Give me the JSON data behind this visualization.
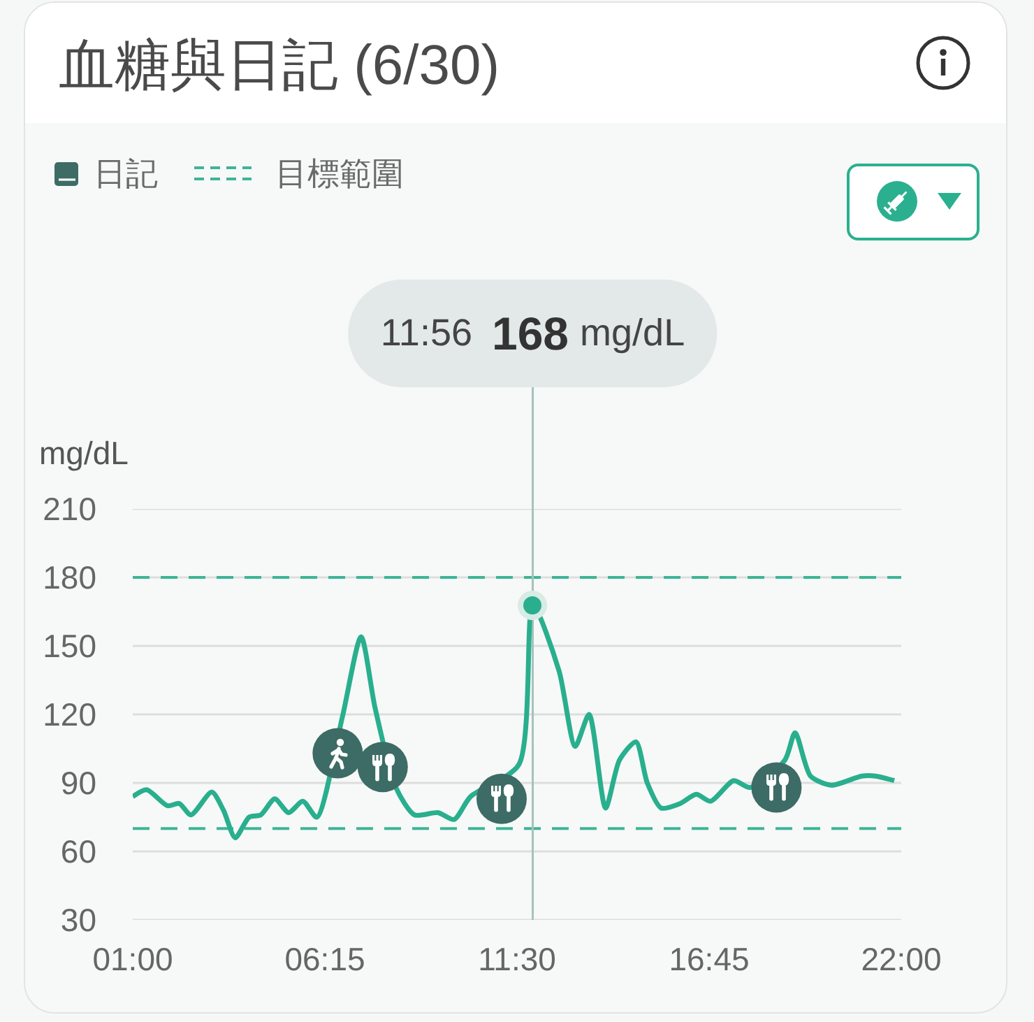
{
  "chart_data": {
    "type": "line",
    "title": "血糖與日記 (6/30)",
    "ylabel": "mg/dL",
    "xlim": [
      1,
      22
    ],
    "xticks": [
      {
        "value": 1,
        "label": "01:00"
      },
      {
        "value": 6.25,
        "label": "06:15"
      },
      {
        "value": 11.5,
        "label": "11:30"
      },
      {
        "value": 16.75,
        "label": "16:45"
      },
      {
        "value": 22,
        "label": "22:00"
      }
    ],
    "ylim": [
      30,
      210
    ],
    "yticks": [
      30,
      60,
      90,
      120,
      150,
      180,
      210
    ],
    "grid": "y",
    "legend": "top left",
    "series": [
      {
        "color": "#29af8d",
        "x": [
          1.0,
          1.38,
          1.95,
          2.27,
          2.59,
          3.16,
          3.48,
          3.8,
          4.18,
          4.5,
          4.88,
          5.26,
          5.65,
          6.03,
          6.73,
          7.24,
          7.62,
          8.19,
          8.7,
          9.34,
          9.78,
          10.23,
          11.55,
          11.93,
          12.65,
          13.09,
          13.47,
          13.92,
          14.3,
          14.75,
          15.06,
          15.44,
          15.96,
          16.4,
          16.79,
          17.42,
          17.87,
          18.82,
          19.1,
          19.52,
          20.09,
          20.92,
          21.3,
          21.81
        ],
        "values": [
          84,
          87,
          80,
          81,
          76,
          86,
          78,
          66,
          75,
          76,
          83,
          77,
          82,
          75,
          119,
          154,
          123,
          88,
          76,
          77,
          74,
          84,
          98,
          168,
          139,
          106,
          120,
          79,
          100,
          108,
          90,
          79,
          81,
          85,
          82,
          91,
          88,
          100,
          112,
          93,
          89,
          93,
          93,
          91
        ]
      },
      {
        "name": "日記",
        "type": "scatter",
        "marker": "circle",
        "color": "#3d6b65",
        "x": [
          6.6
        ],
        "values": [
          103
        ]
      },
      {
        "type": "scatter",
        "marker": "circle",
        "color": "#3d6b65",
        "x": [
          7.83,
          11.08,
          18.59
        ],
        "values": [
          97,
          83,
          88
        ]
      }
    ],
    "ref_lines": [
      {
        "axis": "y",
        "value": 180,
        "label": "目標範圍",
        "color": "#3db596",
        "line_style": "dashed"
      },
      {
        "axis": "y",
        "value": 70,
        "color": "#3db596",
        "line_style": "dashed"
      },
      {
        "axis": "x",
        "value": 11.93,
        "color": "#a6c2bc"
      }
    ],
    "annotations": [
      "11:56 168 mg/dL"
    ]
  }
}
